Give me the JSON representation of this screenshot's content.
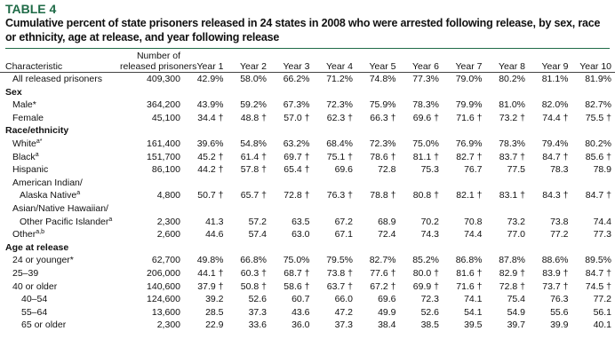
{
  "header": {
    "label": "TABLE 4",
    "title": "Cumulative percent of state prisoners released in 24 states in 2008 who were arrested following release, by sex, race or ethnicity, age at release, and year following release"
  },
  "table": {
    "columns": [
      "Characteristic",
      [
        "Number of",
        "released prisoners"
      ],
      "Year 1",
      "Year 2",
      "Year 3",
      "Year 4",
      "Year 5",
      "Year 6",
      "Year 7",
      "Year 8",
      "Year 9",
      "Year 10"
    ],
    "rows": [
      {
        "label": "All released prisoners",
        "cells": [
          "409,300",
          "42.9%",
          "58.0%",
          "66.2%",
          "71.2%",
          "74.8%",
          "77.3%",
          "79.0%",
          "80.2%",
          "81.1%",
          "81.9%"
        ]
      },
      {
        "section": "Sex",
        "rows": [
          {
            "label": "Male*",
            "cells": [
              "364,200",
              "43.9%",
              "59.2%",
              "67.3%",
              "72.3%",
              "75.9%",
              "78.3%",
              "79.9%",
              "81.0%",
              "82.0%",
              "82.7%"
            ]
          },
          {
            "label": "Female",
            "cells": [
              "45,100",
              "34.4 †",
              "48.8 †",
              "57.0 †",
              "62.3 †",
              "66.3 †",
              "69.6 †",
              "71.6 †",
              "73.2 †",
              "74.4 †",
              "75.5 †"
            ]
          }
        ]
      },
      {
        "section": "Race/ethnicity",
        "rows": [
          {
            "label": "White",
            "note": "a*",
            "cells": [
              "161,400",
              "39.6%",
              "54.8%",
              "63.2%",
              "68.4%",
              "72.3%",
              "75.0%",
              "76.9%",
              "78.3%",
              "79.4%",
              "80.2%"
            ]
          },
          {
            "label": "Black",
            "note": "a",
            "cells": [
              "151,700",
              "45.2 †",
              "61.4 †",
              "69.7 †",
              "75.1 †",
              "78.6 †",
              "81.1 †",
              "82.7 †",
              "83.7 †",
              "84.7 †",
              "85.6 †"
            ]
          },
          {
            "label": "Hispanic",
            "cells": [
              "86,100",
              "44.2 †",
              "57.8 †",
              "65.4 †",
              "69.6",
              "72.8",
              "75.3",
              "76.7",
              "77.5",
              "78.3",
              "78.9"
            ]
          },
          {
            "label": [
              "American Indian/",
              "Alaska Native"
            ],
            "note": "a",
            "cells": [
              "4,800",
              "50.7 †",
              "65.7 †",
              "72.8 †",
              "76.3 †",
              "78.8 †",
              "80.8 †",
              "82.1 †",
              "83.1 †",
              "84.3 †",
              "84.7 †"
            ]
          },
          {
            "label": [
              "Asian/Native Hawaiian/",
              "Other Pacific Islander"
            ],
            "note": "a",
            "cells": [
              "2,300",
              "41.3",
              "57.2",
              "63.5",
              "67.2",
              "68.9",
              "70.2",
              "70.8",
              "73.2",
              "73.8",
              "74.4"
            ]
          },
          {
            "label": "Other",
            "note": "a,b",
            "cells": [
              "2,600",
              "44.6",
              "57.4",
              "63.0",
              "67.1",
              "72.4",
              "74.3",
              "74.4",
              "77.0",
              "77.2",
              "77.3"
            ]
          }
        ]
      },
      {
        "section": "Age at release",
        "rows": [
          {
            "label": "24 or younger*",
            "cells": [
              "62,700",
              "49.8%",
              "66.8%",
              "75.0%",
              "79.5%",
              "82.7%",
              "85.2%",
              "86.8%",
              "87.8%",
              "88.6%",
              "89.5%"
            ]
          },
          {
            "label": "25–39",
            "cells": [
              "206,000",
              "44.1 †",
              "60.3 †",
              "68.7 †",
              "73.8 †",
              "77.6 †",
              "80.0 †",
              "81.6 †",
              "82.9 †",
              "83.9 †",
              "84.7 †"
            ]
          },
          {
            "label": "40 or older",
            "cells": [
              "140,600",
              "37.9 †",
              "50.8 †",
              "58.6 †",
              "63.7 †",
              "67.2 †",
              "69.9 †",
              "71.6 †",
              "72.8 †",
              "73.7 †",
              "74.5 †"
            ],
            "rows": [
              {
                "label": "40–54",
                "cells": [
                  "124,600",
                  "39.2",
                  "52.6",
                  "60.7",
                  "66.0",
                  "69.6",
                  "72.3",
                  "74.1",
                  "75.4",
                  "76.3",
                  "77.2"
                ]
              },
              {
                "label": "55–64",
                "cells": [
                  "13,600",
                  "28.5",
                  "37.3",
                  "43.6",
                  "47.2",
                  "49.9",
                  "52.6",
                  "54.1",
                  "54.9",
                  "55.6",
                  "56.1"
                ]
              },
              {
                "label": "65 or older",
                "cells": [
                  "2,300",
                  "22.9",
                  "33.6",
                  "36.0",
                  "37.3",
                  "38.4",
                  "38.5",
                  "39.5",
                  "39.7",
                  "39.9",
                  "40.1"
                ]
              }
            ]
          }
        ]
      }
    ]
  }
}
